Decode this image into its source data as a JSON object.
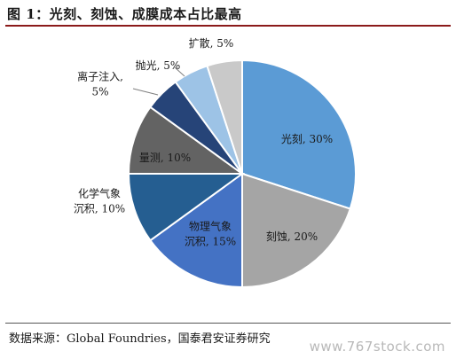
{
  "figure": {
    "title": "图 1：光刻、刻蚀、成膜成本占比最高",
    "source": "数据来源：Global Foundries，国泰君安证券研究",
    "watermark": "www.767stock.com"
  },
  "chart_data": {
    "type": "pie",
    "title": "图 1：光刻、刻蚀、成膜成本占比最高",
    "slices": [
      {
        "label": "光刻",
        "value": 30,
        "label_text": [
          "光刻, 30%"
        ],
        "color": "#5b9bd5"
      },
      {
        "label": "刻蚀",
        "value": 20,
        "label_text": [
          "刻蚀, 20%"
        ],
        "color": "#a5a5a5"
      },
      {
        "label": "物理气象沉积",
        "value": 15,
        "label_text": [
          "物理气象",
          "沉积, 15%"
        ],
        "color": "#4472c4"
      },
      {
        "label": "化学气象沉积",
        "value": 10,
        "label_text": [
          "化学气象",
          "沉积, 10%"
        ],
        "color": "#255e91"
      },
      {
        "label": "量测",
        "value": 10,
        "label_text": [
          "量测, 10%"
        ],
        "color": "#636363"
      },
      {
        "label": "离子注入",
        "value": 5,
        "label_text": [
          "离子注入,",
          "5%"
        ],
        "color": "#264478"
      },
      {
        "label": "抛光",
        "value": 5,
        "label_text": [
          "抛光, 5%"
        ],
        "color": "#9dc3e6"
      },
      {
        "label": "扩散",
        "value": 5,
        "label_text": [
          "扩散, 5%"
        ],
        "color": "#c9c9c9"
      }
    ],
    "start_angle_deg": 0,
    "direction": "clockwise",
    "legend": "none"
  }
}
